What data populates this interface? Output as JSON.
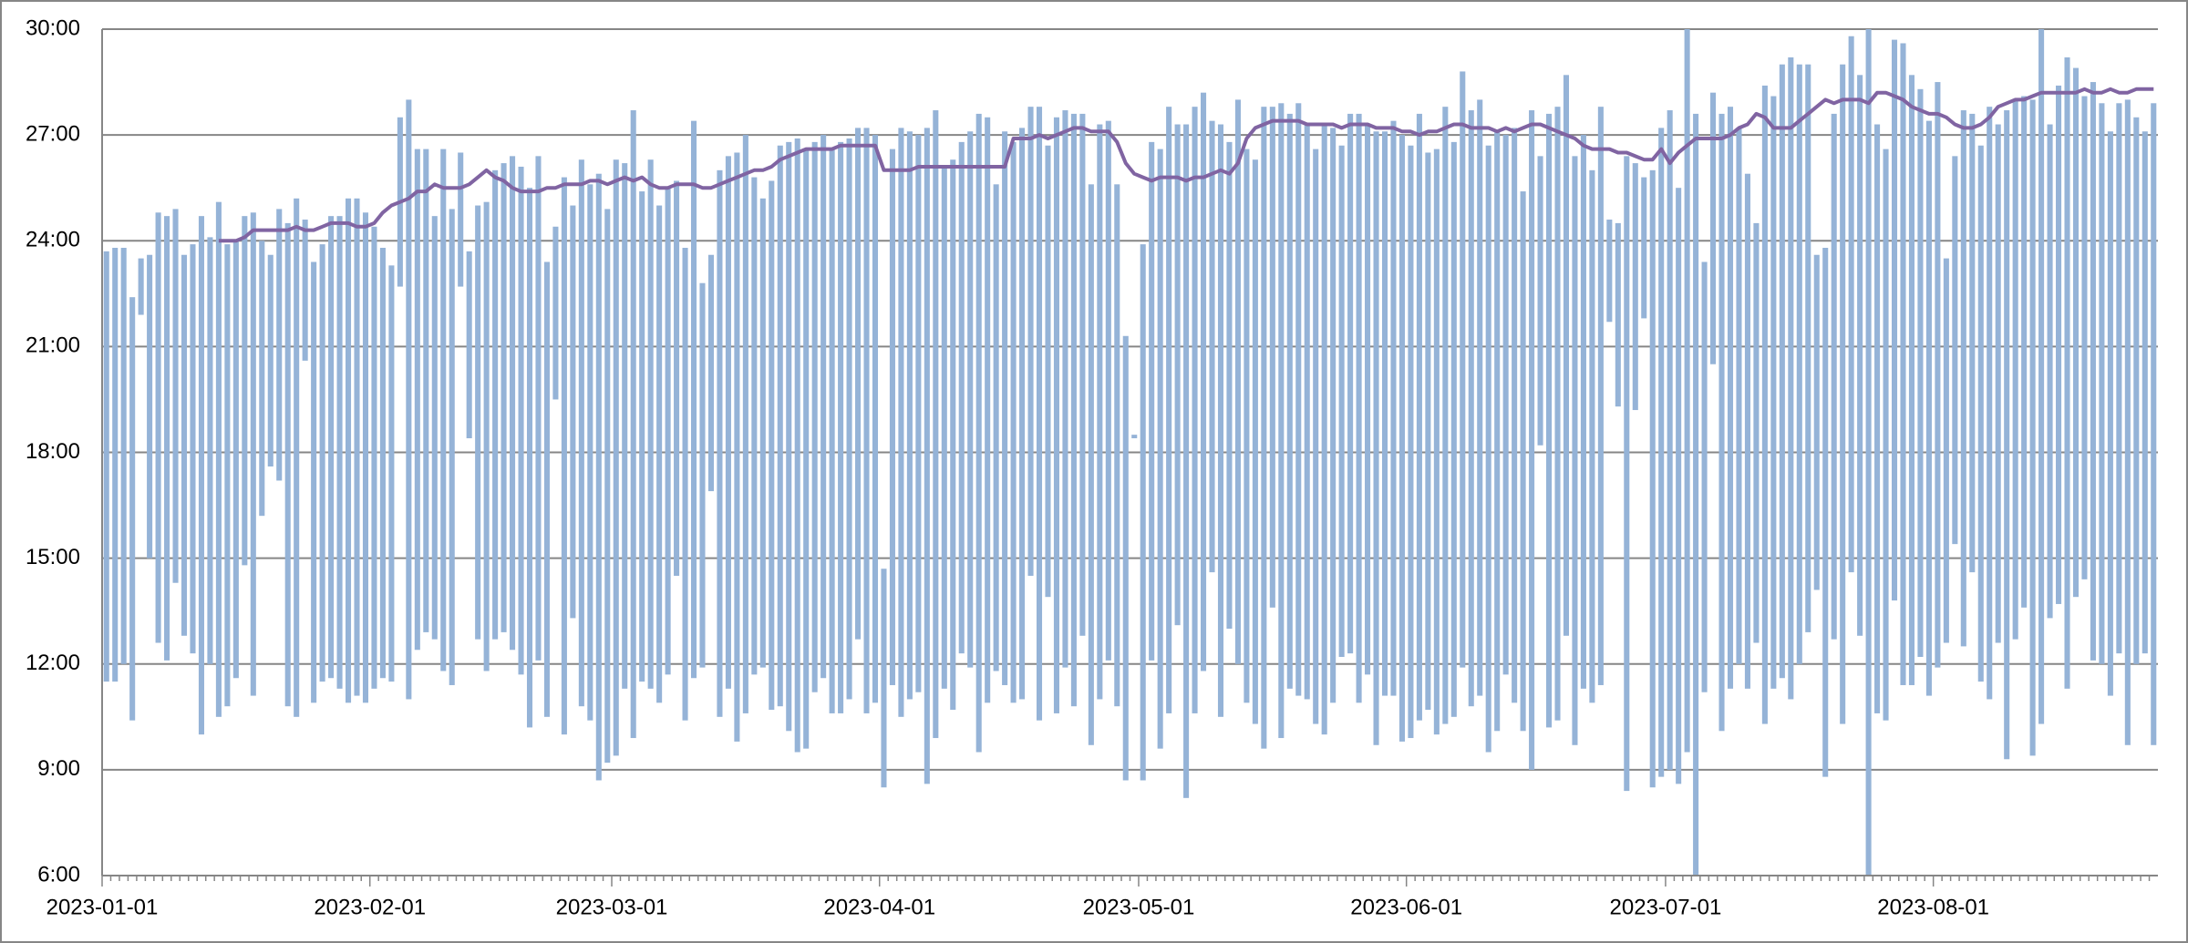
{
  "chart_data": {
    "type": "bar",
    "categories": [
      "2023-01-01",
      null,
      null,
      null,
      null,
      null,
      null,
      null,
      null,
      null,
      null,
      null,
      null,
      null,
      null,
      null,
      null,
      null,
      null,
      null,
      null,
      null,
      null,
      null,
      null,
      null,
      null,
      null,
      null,
      null,
      null,
      "2023-02-01",
      null,
      null,
      null,
      null,
      null,
      null,
      null,
      null,
      null,
      null,
      null,
      null,
      null,
      null,
      null,
      null,
      null,
      null,
      null,
      null,
      null,
      null,
      null,
      null,
      null,
      null,
      null,
      "2023-03-01",
      null,
      null,
      null,
      null,
      null,
      null,
      null,
      null,
      null,
      null,
      null,
      null,
      null,
      null,
      null,
      null,
      null,
      null,
      null,
      null,
      null,
      null,
      null,
      null,
      null,
      null,
      null,
      null,
      null,
      null,
      "2023-04-01",
      null,
      null,
      null,
      null,
      null,
      null,
      null,
      null,
      null,
      null,
      null,
      null,
      null,
      null,
      null,
      null,
      null,
      null,
      null,
      null,
      null,
      null,
      null,
      null,
      null,
      null,
      null,
      null,
      null,
      "2023-05-01",
      null,
      null,
      null,
      null,
      null,
      null,
      null,
      null,
      null,
      null,
      null,
      null,
      null,
      null,
      null,
      null,
      null,
      null,
      null,
      null,
      null,
      null,
      null,
      null,
      null,
      null,
      null,
      null,
      null,
      null,
      "2023-06-01",
      null,
      null,
      null,
      null,
      null,
      null,
      null,
      null,
      null,
      null,
      null,
      null,
      null,
      null,
      null,
      null,
      null,
      null,
      null,
      null,
      null,
      null,
      null,
      null,
      null,
      null,
      null,
      null,
      null,
      "2023-07-01",
      null,
      null,
      null,
      null,
      null,
      null,
      null,
      null,
      null,
      null,
      null,
      null,
      null,
      null,
      null,
      null,
      null,
      null,
      null,
      null,
      null,
      null,
      null,
      null,
      null,
      null,
      null,
      null,
      null,
      null,
      "2023-08-01",
      null,
      null,
      null,
      null,
      null,
      null,
      null,
      null,
      null,
      null,
      null,
      null,
      null,
      null,
      null,
      null,
      null,
      null,
      null,
      null,
      null,
      null,
      null,
      null,
      null
    ],
    "bars": {
      "color": "#95b3d7",
      "low": [
        11.5,
        11.5,
        12.0,
        10.4,
        21.9,
        15.0,
        12.6,
        12.1,
        14.3,
        12.8,
        12.3,
        10.0,
        12.0,
        10.5,
        10.8,
        11.6,
        14.8,
        11.1,
        16.2,
        17.6,
        17.2,
        10.8,
        10.5,
        20.6,
        10.9,
        11.5,
        11.6,
        11.3,
        10.9,
        11.1,
        10.9,
        11.3,
        11.6,
        11.5,
        22.7,
        11.0,
        12.4,
        12.9,
        12.7,
        11.8,
        11.4,
        22.7,
        18.4,
        12.7,
        11.8,
        12.7,
        12.9,
        12.4,
        11.7,
        10.2,
        12.1,
        10.5,
        19.5,
        10.0,
        13.3,
        10.8,
        10.4,
        8.7,
        9.2,
        9.4,
        11.3,
        9.9,
        11.5,
        11.3,
        10.9,
        11.7,
        14.5,
        10.4,
        11.6,
        11.9,
        16.9,
        10.5,
        11.3,
        9.8,
        10.6,
        11.7,
        11.9,
        10.7,
        10.8,
        10.1,
        9.5,
        9.6,
        11.2,
        11.6,
        10.6,
        10.6,
        11.0,
        12.7,
        10.6,
        10.9,
        8.5,
        11.4,
        10.5,
        11.0,
        11.2,
        8.6,
        9.9,
        11.3,
        10.7,
        12.3,
        11.9,
        9.5,
        10.9,
        11.8,
        11.4,
        10.9,
        11.0,
        14.5,
        10.4,
        13.9,
        10.6,
        11.9,
        10.8,
        12.8,
        9.7,
        11.0,
        12.1,
        10.8,
        8.7,
        18.4,
        8.7,
        12.1,
        9.6,
        10.6,
        13.1,
        8.2,
        10.6,
        11.8,
        14.6,
        10.5,
        13.0,
        12.0,
        10.9,
        10.3,
        9.6,
        13.6,
        9.9,
        11.3,
        11.1,
        11.0,
        10.3,
        10.0,
        10.9,
        12.2,
        12.3,
        10.9,
        11.7,
        9.7,
        11.1,
        11.1,
        9.8,
        9.9,
        10.4,
        10.7,
        10.0,
        10.3,
        10.5,
        11.9,
        10.8,
        11.1,
        9.5,
        10.1,
        11.7,
        10.9,
        10.1,
        9.0,
        18.2,
        10.2,
        10.4,
        12.8,
        9.7,
        11.3,
        10.9,
        11.4,
        21.7,
        19.3,
        8.4,
        19.2,
        21.8,
        8.5,
        8.8,
        9.0,
        8.6,
        9.5,
        6.0,
        11.2,
        20.5,
        10.1,
        11.3,
        12.0,
        11.3,
        12.6,
        10.3,
        11.3,
        11.6,
        11.0,
        12.0,
        12.9,
        14.1,
        8.8,
        12.7,
        10.3,
        14.6,
        12.8,
        6.0,
        10.6,
        10.4,
        13.8,
        11.4,
        11.4,
        12.2,
        11.1,
        11.9,
        12.6,
        15.4,
        12.5,
        14.6,
        11.5,
        11.0,
        12.6,
        9.3,
        12.7,
        13.6,
        9.4,
        10.3,
        13.3,
        13.7,
        11.3,
        13.9,
        14.4,
        12.1,
        12.0,
        11.1,
        12.3,
        9.7,
        12.0,
        12.3,
        9.7
      ],
      "high": [
        23.7,
        23.8,
        23.8,
        22.4,
        23.5,
        23.6,
        24.8,
        24.7,
        24.9,
        23.6,
        23.9,
        24.7,
        24.1,
        25.1,
        23.9,
        24.0,
        24.7,
        24.8,
        24.0,
        23.6,
        24.9,
        24.5,
        25.2,
        24.6,
        23.4,
        23.9,
        24.7,
        24.7,
        25.2,
        25.2,
        24.8,
        24.4,
        23.8,
        23.3,
        27.5,
        28.0,
        26.6,
        26.6,
        24.7,
        26.6,
        24.9,
        26.5,
        23.7,
        25.0,
        25.1,
        26.0,
        26.2,
        26.4,
        26.1,
        25.5,
        26.4,
        23.4,
        24.4,
        25.8,
        25.0,
        26.3,
        25.6,
        25.9,
        24.9,
        26.3,
        26.2,
        27.7,
        25.4,
        26.3,
        25.0,
        25.5,
        25.7,
        23.8,
        27.4,
        22.8,
        23.6,
        26.0,
        26.4,
        26.5,
        27.0,
        25.8,
        25.2,
        25.7,
        26.7,
        26.8,
        26.9,
        26.6,
        26.8,
        27.0,
        26.6,
        26.8,
        26.9,
        27.2,
        27.2,
        27.0,
        14.7,
        26.6,
        27.2,
        27.1,
        27.0,
        27.2,
        27.7,
        26.1,
        26.3,
        26.8,
        27.1,
        27.6,
        27.5,
        25.6,
        27.1,
        26.8,
        27.2,
        27.8,
        27.8,
        26.7,
        27.5,
        27.7,
        27.6,
        27.6,
        25.6,
        27.3,
        27.4,
        25.6,
        21.3,
        18.5,
        23.9,
        26.8,
        26.6,
        27.8,
        27.3,
        27.3,
        27.8,
        28.2,
        27.4,
        27.3,
        26.8,
        28.0,
        26.6,
        26.3,
        27.8,
        27.8,
        27.9,
        27.6,
        27.9,
        27.3,
        26.6,
        27.3,
        27.2,
        26.7,
        27.6,
        27.6,
        27.3,
        27.1,
        27.1,
        27.4,
        27.0,
        26.7,
        27.6,
        26.5,
        26.6,
        27.8,
        26.8,
        28.8,
        27.7,
        28.0,
        26.7,
        27.1,
        27.0,
        27.2,
        25.4,
        27.7,
        26.4,
        27.6,
        27.8,
        28.7,
        26.4,
        27.0,
        26.0,
        27.8,
        24.6,
        24.5,
        26.4,
        26.2,
        25.8,
        26.0,
        27.2,
        27.7,
        25.5,
        30.0,
        27.6,
        23.4,
        28.2,
        27.6,
        27.8,
        27.2,
        25.9,
        24.5,
        28.4,
        28.1,
        29.0,
        29.2,
        29.0,
        29.0,
        23.6,
        23.8,
        27.6,
        29.0,
        29.8,
        28.7,
        30.0,
        27.3,
        26.6,
        29.7,
        29.6,
        28.7,
        28.3,
        27.4,
        28.5,
        23.5,
        26.4,
        27.7,
        27.6,
        26.7,
        27.8,
        27.3,
        27.7,
        28.0,
        28.1,
        28.0,
        30.0,
        27.3,
        28.4,
        29.2,
        28.9,
        28.1,
        28.5,
        27.9,
        27.1,
        27.9,
        28.0,
        27.5,
        27.1,
        27.9
      ]
    },
    "line": {
      "color": "#8064a2",
      "values": [
        null,
        null,
        null,
        null,
        null,
        null,
        null,
        null,
        null,
        null,
        null,
        null,
        null,
        24.0,
        24.0,
        24.0,
        24.1,
        24.3,
        24.3,
        24.3,
        24.3,
        24.3,
        24.4,
        24.3,
        24.3,
        24.4,
        24.5,
        24.5,
        24.5,
        24.4,
        24.4,
        24.5,
        24.8,
        25.0,
        25.1,
        25.2,
        25.4,
        25.4,
        25.6,
        25.5,
        25.5,
        25.5,
        25.6,
        25.8,
        26.0,
        25.8,
        25.7,
        25.5,
        25.4,
        25.4,
        25.4,
        25.5,
        25.5,
        25.6,
        25.6,
        25.6,
        25.7,
        25.7,
        25.6,
        25.7,
        25.8,
        25.7,
        25.8,
        25.6,
        25.5,
        25.5,
        25.6,
        25.6,
        25.6,
        25.5,
        25.5,
        25.6,
        25.7,
        25.8,
        25.9,
        26.0,
        26.0,
        26.1,
        26.3,
        26.4,
        26.5,
        26.6,
        26.6,
        26.6,
        26.6,
        26.7,
        26.7,
        26.7,
        26.7,
        26.7,
        26.0,
        26.0,
        26.0,
        26.0,
        26.1,
        26.1,
        26.1,
        26.1,
        26.1,
        26.1,
        26.1,
        26.1,
        26.1,
        26.1,
        26.1,
        26.9,
        26.9,
        26.9,
        27.0,
        26.9,
        27.0,
        27.1,
        27.2,
        27.2,
        27.1,
        27.1,
        27.1,
        26.8,
        26.2,
        25.9,
        25.8,
        25.7,
        25.8,
        25.8,
        25.8,
        25.7,
        25.8,
        25.8,
        25.9,
        26.0,
        25.9,
        26.2,
        26.9,
        27.2,
        27.3,
        27.4,
        27.4,
        27.4,
        27.4,
        27.3,
        27.3,
        27.3,
        27.3,
        27.2,
        27.3,
        27.3,
        27.3,
        27.2,
        27.2,
        27.2,
        27.1,
        27.1,
        27.0,
        27.1,
        27.1,
        27.2,
        27.3,
        27.3,
        27.2,
        27.2,
        27.2,
        27.1,
        27.2,
        27.1,
        27.2,
        27.3,
        27.3,
        27.2,
        27.1,
        27.0,
        26.9,
        26.7,
        26.6,
        26.6,
        26.6,
        26.5,
        26.5,
        26.4,
        26.3,
        26.3,
        26.6,
        26.2,
        26.5,
        26.7,
        26.9,
        26.9,
        26.9,
        26.9,
        27.0,
        27.2,
        27.3,
        27.6,
        27.5,
        27.2,
        27.2,
        27.2,
        27.4,
        27.6,
        27.8,
        28.0,
        27.9,
        28.0,
        28.0,
        28.0,
        27.9,
        28.2,
        28.2,
        28.1,
        28.0,
        27.8,
        27.7,
        27.6,
        27.6,
        27.5,
        27.3,
        27.2,
        27.2,
        27.3,
        27.5,
        27.8,
        27.9,
        28.0,
        28.0,
        28.1,
        28.2,
        28.2,
        28.2,
        28.2,
        28.2,
        28.3,
        28.2,
        28.2,
        28.3,
        28.2,
        28.2,
        28.3,
        28.3,
        28.3
      ]
    },
    "ylim": [
      6,
      30
    ],
    "yticks": [
      {
        "value": 6,
        "label": "6:00"
      },
      {
        "value": 9,
        "label": "9:00"
      },
      {
        "value": 12,
        "label": "12:00"
      },
      {
        "value": 15,
        "label": "15:00"
      },
      {
        "value": 18,
        "label": "18:00"
      },
      {
        "value": 21,
        "label": "21:00"
      },
      {
        "value": 24,
        "label": "24:00"
      },
      {
        "value": 27,
        "label": "27:00"
      },
      {
        "value": 30,
        "label": "30:00"
      }
    ],
    "grid": true
  }
}
